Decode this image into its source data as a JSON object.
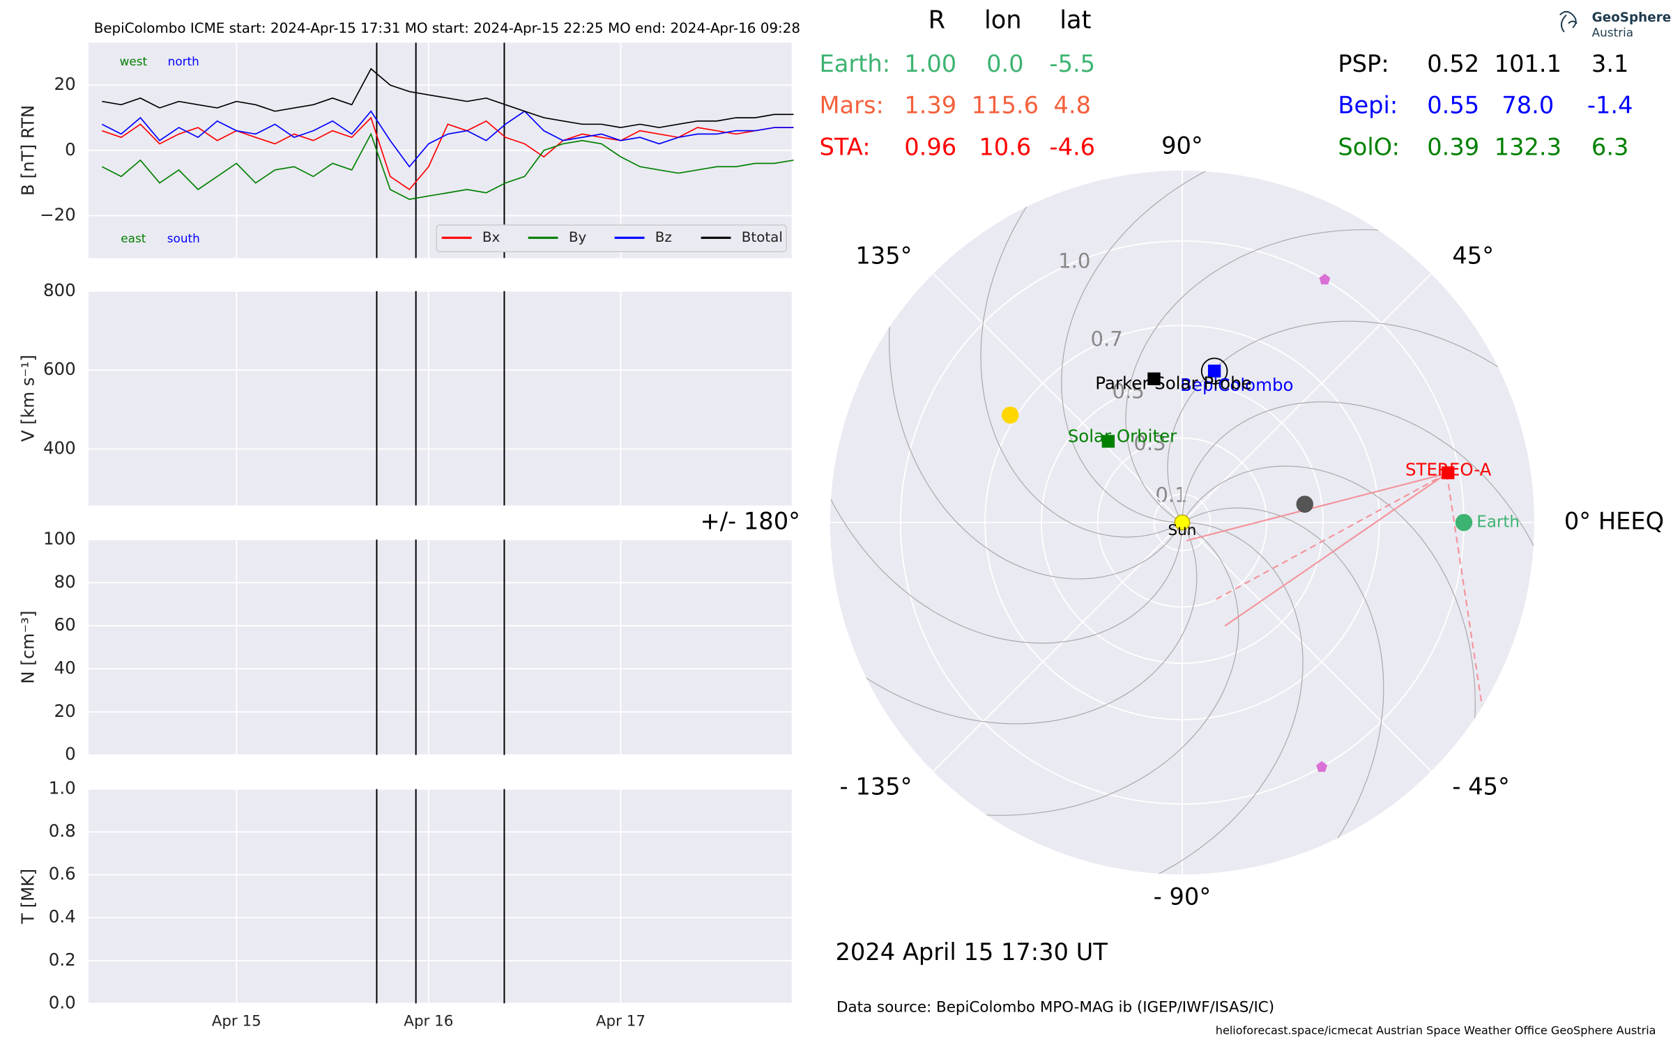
{
  "header": {
    "logo": [
      "GeoSphere",
      "Austria"
    ],
    "timestamp": "2024 April 15  17:30 UT",
    "source": "Data source: BepiColombo MPO-MAG ib (IGEP/IWF/ISAS/IC)",
    "footer": "helioforecast.space/icmecat   Austrian Space Weather Office   GeoSphere Austria"
  },
  "table": {
    "columns": [
      "R",
      "lon",
      "lat"
    ],
    "rows": [
      {
        "cells": [
          "Earth:",
          "1.00",
          "0.0",
          "-5.5"
        ],
        "color": "#3cb371"
      },
      {
        "cells": [
          "Mars:",
          "1.39",
          "115.6",
          "4.8"
        ],
        "color": "#f4603c"
      },
      {
        "cells": [
          "STA:",
          "0.96",
          "10.6",
          "-4.6"
        ],
        "color": "#ff0000"
      },
      {
        "cells": [
          "PSP:",
          "0.52",
          "101.1",
          "3.1"
        ],
        "color": "#000000"
      },
      {
        "cells": [
          "Bepi:",
          "0.55",
          "78.0",
          "-1.4"
        ],
        "color": "#0000ff"
      },
      {
        "cells": [
          "SolO:",
          "0.39",
          "132.3",
          "6.3"
        ],
        "color": "#008000"
      }
    ]
  },
  "chart_data": [
    {
      "type": "line",
      "title": "BepiColombo    ICME start: 2024-Apr-15 17:31   MO start: 2024-Apr-15 22:25   MO end: 2024-Apr-16 09:28",
      "ylabel": "B [nT] RTN",
      "ylim": [
        -33,
        33
      ],
      "yticks": [
        {
          "value": -20,
          "label": "−20"
        },
        0,
        20
      ],
      "grid": true,
      "vlines": [
        15.73,
        15.934,
        16.394
      ],
      "x": [
        14.3,
        14.4,
        14.5,
        14.6,
        14.7,
        14.8,
        14.9,
        15.0,
        15.1,
        15.2,
        15.3,
        15.4,
        15.5,
        15.6,
        15.7,
        15.8,
        15.9,
        16.0,
        16.1,
        16.2,
        16.3,
        16.4,
        16.5,
        16.6,
        16.7,
        16.8,
        16.9,
        17.0,
        17.1,
        17.2,
        17.3,
        17.4,
        17.5,
        17.6,
        17.7,
        17.8,
        17.9
      ],
      "series": [
        {
          "name": "Bx",
          "color": "#ff0000",
          "values": [
            6,
            4,
            8,
            2,
            5,
            7,
            3,
            6,
            4,
            2,
            5,
            3,
            6,
            4,
            10,
            -8,
            -12,
            -5,
            8,
            6,
            9,
            4,
            2,
            -2,
            3,
            5,
            4,
            3,
            6,
            5,
            4,
            7,
            6,
            5,
            6,
            7,
            7
          ]
        },
        {
          "name": "By",
          "color": "#008000",
          "values": [
            -5,
            -8,
            -3,
            -10,
            -6,
            -12,
            -8,
            -4,
            -10,
            -6,
            -5,
            -8,
            -4,
            -6,
            5,
            -12,
            -15,
            -14,
            -13,
            -12,
            -13,
            -10,
            -8,
            0,
            2,
            3,
            2,
            -2,
            -5,
            -6,
            -7,
            -6,
            -5,
            -5,
            -4,
            -4,
            -3
          ]
        },
        {
          "name": "Bz",
          "color": "#0000ff",
          "values": [
            8,
            5,
            10,
            3,
            7,
            4,
            9,
            6,
            5,
            8,
            4,
            6,
            9,
            5,
            12,
            3,
            -5,
            2,
            5,
            6,
            3,
            8,
            12,
            6,
            3,
            4,
            5,
            3,
            4,
            2,
            4,
            5,
            5,
            6,
            6,
            7,
            7
          ]
        },
        {
          "name": "Btotal",
          "color": "#000000",
          "values": [
            15,
            14,
            16,
            13,
            15,
            14,
            13,
            15,
            14,
            12,
            13,
            14,
            16,
            14,
            25,
            20,
            18,
            17,
            16,
            15,
            16,
            14,
            12,
            10,
            9,
            8,
            8,
            7,
            8,
            7,
            8,
            9,
            9,
            10,
            10,
            11,
            11
          ]
        }
      ],
      "annotations": [
        {
          "text": "west",
          "color": "#008000"
        },
        {
          "text": "north",
          "color": "#0000ff"
        },
        {
          "text": "east",
          "color": "#008000"
        },
        {
          "text": "south",
          "color": "#0000ff"
        }
      ]
    },
    {
      "type": "line",
      "ylabel": "V [km s⁻¹]",
      "ylim": [
        257,
        800
      ],
      "yticks": [
        400,
        600,
        800
      ],
      "grid": true
    },
    {
      "type": "line",
      "ylabel": "N [cm⁻³]",
      "ylim": [
        0,
        100
      ],
      "yticks": [
        0,
        20,
        40,
        60,
        80,
        100
      ],
      "grid": true
    },
    {
      "type": "line",
      "ylabel": "T [MK]",
      "ylim": [
        0,
        1
      ],
      "grid": true,
      "yticks": [
        {
          "value": 0,
          "label": "0.0"
        },
        {
          "value": 0.2,
          "label": "0.2"
        },
        {
          "value": 0.4,
          "label": "0.4"
        },
        {
          "value": 0.6,
          "label": "0.6"
        },
        {
          "value": 0.8,
          "label": "0.8"
        },
        {
          "value": 1,
          "label": "1.0"
        }
      ],
      "xlim": [
        14.23,
        17.89
      ],
      "xticks": [
        {
          "value": 15,
          "label": "Apr 15"
        },
        {
          "value": 16,
          "label": "Apr 16"
        },
        {
          "value": 17,
          "label": "Apr 17"
        }
      ]
    },
    {
      "type": "polar",
      "rlim": [
        0,
        1.25
      ],
      "rticks": [
        0.1,
        0.3,
        0.5,
        0.7,
        {
          "value": 1,
          "label": "1.0"
        }
      ],
      "thetaticks": [
        {
          "value": 0,
          "label": "0° HEEQ"
        },
        {
          "value": 45,
          "label": "45°"
        },
        {
          "value": 90,
          "label": "90°"
        },
        {
          "value": 135,
          "label": "135°"
        },
        {
          "value": 180,
          "label": "+/- 180°"
        },
        {
          "value": -135,
          "label": "- 135°"
        },
        {
          "value": -90,
          "label": "- 90°"
        },
        {
          "value": -45,
          "label": "- 45°"
        }
      ],
      "points": [
        {
          "name": "Sun",
          "r": 0,
          "lon": 0,
          "color": "#ffff00",
          "marker": "circle"
        },
        {
          "r": 0.72,
          "lon": 148,
          "color": "#ffd700",
          "marker": "circle"
        },
        {
          "r": 0.44,
          "lon": 8.5,
          "color": "#555555",
          "marker": "circle"
        },
        {
          "name": "Earth",
          "r": 1.0,
          "lon": 0,
          "color": "#3cb371",
          "marker": "circle"
        },
        {
          "name": "STEREO-A",
          "r": 0.96,
          "lon": 10.6,
          "color": "#ff0000",
          "marker": "square"
        },
        {
          "name": "BepiColombo",
          "r": 0.55,
          "lon": 78.0,
          "color": "#0000ff",
          "marker": "square"
        },
        {
          "name": "Parker Solar Probe",
          "r": 0.52,
          "lon": 101.1,
          "color": "#000000",
          "marker": "square"
        },
        {
          "name": "Solar Orbiter",
          "r": 0.39,
          "lon": 132.3,
          "color": "#008000",
          "marker": "square"
        },
        {
          "r": 1.0,
          "lon": 59.6,
          "color": "#da70d6",
          "marker": "pentagon"
        },
        {
          "r": 1.0,
          "lon": -60.3,
          "color": "#da70d6",
          "marker": "pentagon"
        }
      ]
    }
  ]
}
